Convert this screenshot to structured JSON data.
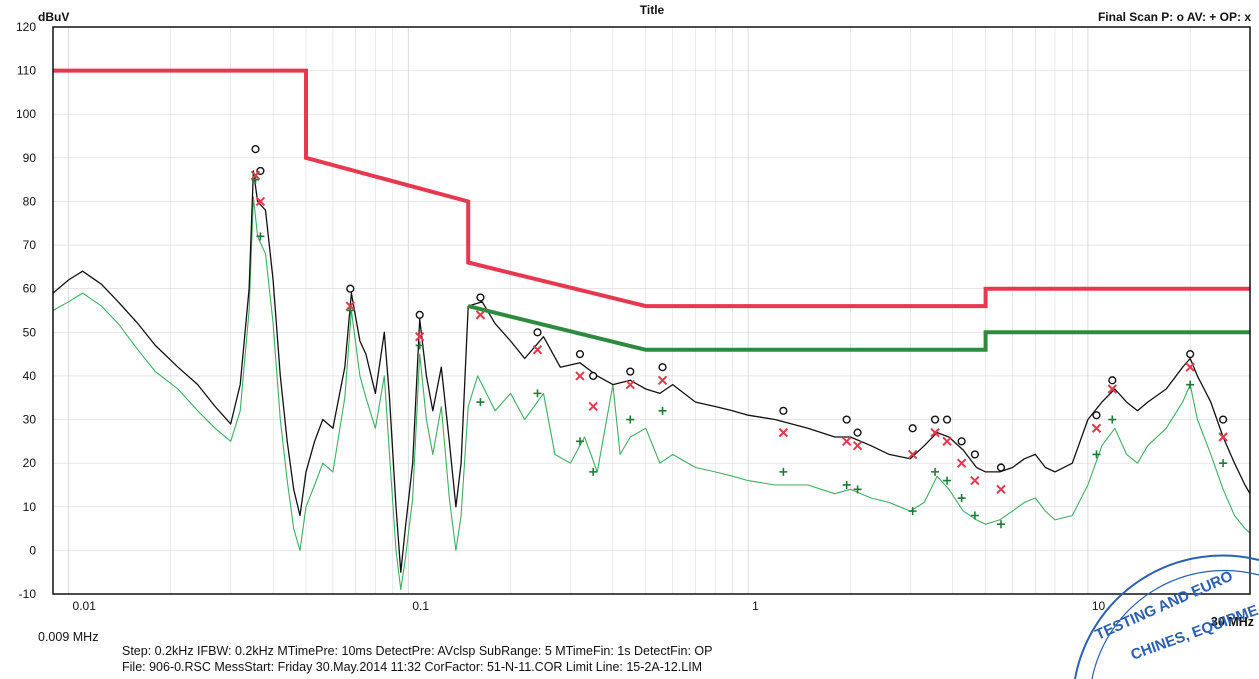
{
  "header": {
    "y_unit": "dBuV",
    "title": "Title",
    "final_scan_legend": "Final Scan P: o  AV: +  OP: x"
  },
  "footer": {
    "start_freq": "0.009 MHz",
    "end_freq": "30 MHz",
    "line1": "Step: 0.2kHz    IFBW: 0.2kHz    MTimePre: 10ms    DetectPre: AVclsp    SubRange:  5    MTimeFin:   1s    DetectFin: OP",
    "line2": "File: 906-0.RSC     MessStart: Friday  30.May.2014   11:32     CorFactor: 51-N-11.COR    Limit Line: 15-2A-12.LIM"
  },
  "stamp": {
    "line1": "TESTING AND EURO",
    "line2": "CHINES, EQUIPME"
  },
  "colors": {
    "limit_red": "#e8384f",
    "limit_green": "#2e8b3e",
    "trace_black": "#111111",
    "trace_green": "#3fae62",
    "marker_red": "#e23a4a",
    "marker_green": "#1f7a34",
    "grid": "#d8d8d8"
  },
  "chart_data": {
    "type": "line",
    "title": "Title",
    "xlabel": "",
    "ylabel": "dBuV",
    "x_scale": "log",
    "xlim_mhz": [
      0.009,
      30
    ],
    "ylim": [
      -10,
      120
    ],
    "x_tick_labels": [
      {
        "mhz": 0.01,
        "label": "0.01"
      },
      {
        "mhz": 0.1,
        "label": "0.1"
      },
      {
        "mhz": 1,
        "label": "1"
      },
      {
        "mhz": 10,
        "label": "10"
      }
    ],
    "y_ticks": [
      -10,
      0,
      10,
      20,
      30,
      40,
      50,
      60,
      70,
      80,
      90,
      100,
      110,
      120
    ],
    "grid": true,
    "limit_lines": [
      {
        "name": "red",
        "color": "#e8384f",
        "points": [
          [
            0.009,
            110
          ],
          [
            0.05,
            110
          ],
          [
            0.05,
            90
          ],
          [
            0.15,
            80
          ],
          [
            0.15,
            66
          ],
          [
            0.5,
            56
          ],
          [
            5,
            56
          ],
          [
            5,
            60
          ],
          [
            30,
            60
          ]
        ]
      },
      {
        "name": "green",
        "color": "#2e8b3e",
        "points": [
          [
            0.15,
            56
          ],
          [
            0.5,
            46
          ],
          [
            5,
            46
          ],
          [
            5,
            50
          ],
          [
            30,
            50
          ]
        ]
      }
    ],
    "series": [
      {
        "detector": "peak",
        "color": "#111111",
        "points": [
          [
            0.009,
            59
          ],
          [
            0.01,
            62
          ],
          [
            0.011,
            64
          ],
          [
            0.0125,
            61
          ],
          [
            0.014,
            57
          ],
          [
            0.016,
            52
          ],
          [
            0.018,
            47
          ],
          [
            0.021,
            42
          ],
          [
            0.024,
            38
          ],
          [
            0.027,
            33
          ],
          [
            0.03,
            29
          ],
          [
            0.032,
            38
          ],
          [
            0.034,
            60
          ],
          [
            0.035,
            87
          ],
          [
            0.036,
            80
          ],
          [
            0.038,
            78
          ],
          [
            0.04,
            62
          ],
          [
            0.042,
            40
          ],
          [
            0.044,
            25
          ],
          [
            0.046,
            14
          ],
          [
            0.048,
            8
          ],
          [
            0.05,
            18
          ],
          [
            0.053,
            25
          ],
          [
            0.056,
            30
          ],
          [
            0.06,
            28
          ],
          [
            0.065,
            42
          ],
          [
            0.068,
            59
          ],
          [
            0.072,
            48
          ],
          [
            0.075,
            45
          ],
          [
            0.08,
            36
          ],
          [
            0.085,
            50
          ],
          [
            0.088,
            35
          ],
          [
            0.092,
            10
          ],
          [
            0.095,
            -5
          ],
          [
            0.098,
            5
          ],
          [
            0.103,
            20
          ],
          [
            0.108,
            53
          ],
          [
            0.113,
            40
          ],
          [
            0.118,
            32
          ],
          [
            0.125,
            42
          ],
          [
            0.132,
            25
          ],
          [
            0.138,
            10
          ],
          [
            0.143,
            20
          ],
          [
            0.15,
            56
          ],
          [
            0.165,
            57
          ],
          [
            0.18,
            52
          ],
          [
            0.2,
            48
          ],
          [
            0.22,
            44
          ],
          [
            0.25,
            49
          ],
          [
            0.28,
            42
          ],
          [
            0.32,
            43
          ],
          [
            0.36,
            40
          ],
          [
            0.4,
            38
          ],
          [
            0.45,
            39
          ],
          [
            0.5,
            37
          ],
          [
            0.55,
            36
          ],
          [
            0.6,
            38
          ],
          [
            0.7,
            34
          ],
          [
            0.8,
            33
          ],
          [
            0.9,
            32
          ],
          [
            1.0,
            31
          ],
          [
            1.2,
            30
          ],
          [
            1.5,
            28
          ],
          [
            1.8,
            26
          ],
          [
            2.0,
            26
          ],
          [
            2.3,
            24
          ],
          [
            2.6,
            22
          ],
          [
            3.0,
            21
          ],
          [
            3.3,
            24
          ],
          [
            3.6,
            27
          ],
          [
            3.9,
            26
          ],
          [
            4.3,
            23
          ],
          [
            4.7,
            19
          ],
          [
            5.0,
            18
          ],
          [
            5.5,
            18
          ],
          [
            6.0,
            19
          ],
          [
            6.5,
            21
          ],
          [
            7.0,
            22
          ],
          [
            7.5,
            19
          ],
          [
            8.0,
            18
          ],
          [
            9.0,
            20
          ],
          [
            10.0,
            30
          ],
          [
            11.0,
            34
          ],
          [
            12.0,
            37
          ],
          [
            13.0,
            34
          ],
          [
            14.0,
            32
          ],
          [
            15.0,
            34
          ],
          [
            17.0,
            37
          ],
          [
            19.0,
            42
          ],
          [
            20.0,
            44
          ],
          [
            21.0,
            40
          ],
          [
            23.0,
            34
          ],
          [
            25.0,
            26
          ],
          [
            27.0,
            20
          ],
          [
            29.0,
            15
          ],
          [
            30.0,
            13
          ]
        ]
      },
      {
        "detector": "average",
        "color": "#3fae62",
        "points": [
          [
            0.009,
            55
          ],
          [
            0.01,
            57
          ],
          [
            0.011,
            59
          ],
          [
            0.0125,
            56
          ],
          [
            0.014,
            52
          ],
          [
            0.016,
            46
          ],
          [
            0.018,
            41
          ],
          [
            0.021,
            37
          ],
          [
            0.024,
            32
          ],
          [
            0.027,
            28
          ],
          [
            0.03,
            25
          ],
          [
            0.032,
            32
          ],
          [
            0.034,
            55
          ],
          [
            0.035,
            81
          ],
          [
            0.036,
            72
          ],
          [
            0.038,
            68
          ],
          [
            0.04,
            52
          ],
          [
            0.042,
            30
          ],
          [
            0.044,
            16
          ],
          [
            0.046,
            5
          ],
          [
            0.048,
            0
          ],
          [
            0.05,
            10
          ],
          [
            0.053,
            15
          ],
          [
            0.056,
            20
          ],
          [
            0.06,
            18
          ],
          [
            0.065,
            35
          ],
          [
            0.068,
            55
          ],
          [
            0.072,
            40
          ],
          [
            0.075,
            35
          ],
          [
            0.08,
            28
          ],
          [
            0.085,
            40
          ],
          [
            0.088,
            22
          ],
          [
            0.092,
            0
          ],
          [
            0.095,
            -9
          ],
          [
            0.098,
            -2
          ],
          [
            0.103,
            12
          ],
          [
            0.108,
            45
          ],
          [
            0.113,
            30
          ],
          [
            0.118,
            22
          ],
          [
            0.125,
            33
          ],
          [
            0.132,
            12
          ],
          [
            0.138,
            0
          ],
          [
            0.143,
            8
          ],
          [
            0.15,
            33
          ],
          [
            0.16,
            40
          ],
          [
            0.18,
            32
          ],
          [
            0.2,
            36
          ],
          [
            0.22,
            30
          ],
          [
            0.25,
            36
          ],
          [
            0.27,
            22
          ],
          [
            0.3,
            20
          ],
          [
            0.33,
            26
          ],
          [
            0.36,
            18
          ],
          [
            0.4,
            38
          ],
          [
            0.42,
            22
          ],
          [
            0.45,
            26
          ],
          [
            0.5,
            28
          ],
          [
            0.55,
            20
          ],
          [
            0.6,
            22
          ],
          [
            0.7,
            19
          ],
          [
            0.8,
            18
          ],
          [
            0.9,
            17
          ],
          [
            1.0,
            16
          ],
          [
            1.2,
            15
          ],
          [
            1.5,
            15
          ],
          [
            1.8,
            13
          ],
          [
            2.0,
            14
          ],
          [
            2.3,
            12
          ],
          [
            2.6,
            11
          ],
          [
            3.0,
            9
          ],
          [
            3.3,
            11
          ],
          [
            3.6,
            17
          ],
          [
            3.9,
            14
          ],
          [
            4.3,
            9
          ],
          [
            4.7,
            7
          ],
          [
            5.0,
            6
          ],
          [
            5.5,
            7
          ],
          [
            6.0,
            9
          ],
          [
            6.5,
            11
          ],
          [
            7.0,
            12
          ],
          [
            7.5,
            9
          ],
          [
            8.0,
            7
          ],
          [
            9.0,
            8
          ],
          [
            10.0,
            15
          ],
          [
            11.0,
            24
          ],
          [
            12.0,
            28
          ],
          [
            13.0,
            22
          ],
          [
            14.0,
            20
          ],
          [
            15.0,
            24
          ],
          [
            17.0,
            28
          ],
          [
            19.0,
            34
          ],
          [
            20.0,
            38
          ],
          [
            21.0,
            30
          ],
          [
            23.0,
            22
          ],
          [
            25.0,
            14
          ],
          [
            27.0,
            8
          ],
          [
            29.0,
            5
          ],
          [
            30.0,
            4
          ]
        ]
      }
    ],
    "final_scan": {
      "peak_o": [
        [
          0.0355,
          92
        ],
        [
          0.0367,
          87
        ],
        [
          0.0675,
          60
        ],
        [
          0.108,
          54
        ],
        [
          0.163,
          58
        ],
        [
          0.24,
          50
        ],
        [
          0.32,
          45
        ],
        [
          0.35,
          40
        ],
        [
          0.45,
          41
        ],
        [
          0.56,
          42
        ],
        [
          1.27,
          32
        ],
        [
          1.95,
          30
        ],
        [
          2.1,
          27
        ],
        [
          3.05,
          28
        ],
        [
          3.55,
          30
        ],
        [
          3.85,
          30
        ],
        [
          4.25,
          25
        ],
        [
          4.65,
          22
        ],
        [
          5.55,
          19
        ],
        [
          10.6,
          31
        ],
        [
          11.8,
          39
        ],
        [
          20.0,
          45
        ],
        [
          25.0,
          30
        ]
      ],
      "average_plus": [
        [
          0.0355,
          85
        ],
        [
          0.0367,
          72
        ],
        [
          0.0675,
          55
        ],
        [
          0.108,
          47
        ],
        [
          0.163,
          34
        ],
        [
          0.24,
          36
        ],
        [
          0.32,
          25
        ],
        [
          0.35,
          18
        ],
        [
          0.45,
          30
        ],
        [
          0.56,
          32
        ],
        [
          1.27,
          18
        ],
        [
          1.95,
          15
        ],
        [
          2.1,
          14
        ],
        [
          3.05,
          9
        ],
        [
          3.55,
          18
        ],
        [
          3.85,
          16
        ],
        [
          4.25,
          12
        ],
        [
          4.65,
          8
        ],
        [
          5.55,
          6
        ],
        [
          10.6,
          22
        ],
        [
          11.8,
          30
        ],
        [
          20.0,
          38
        ],
        [
          25.0,
          20
        ]
      ],
      "qp_x": [
        [
          0.0355,
          86
        ],
        [
          0.0367,
          80
        ],
        [
          0.0675,
          56
        ],
        [
          0.108,
          49
        ],
        [
          0.163,
          54
        ],
        [
          0.24,
          46
        ],
        [
          0.32,
          40
        ],
        [
          0.35,
          33
        ],
        [
          0.45,
          38
        ],
        [
          0.56,
          39
        ],
        [
          1.27,
          27
        ],
        [
          1.95,
          25
        ],
        [
          2.1,
          24
        ],
        [
          3.05,
          22
        ],
        [
          3.55,
          27
        ],
        [
          3.85,
          25
        ],
        [
          4.25,
          20
        ],
        [
          4.65,
          16
        ],
        [
          5.55,
          14
        ],
        [
          10.6,
          28
        ],
        [
          11.8,
          37
        ],
        [
          20.0,
          42
        ],
        [
          25.0,
          26
        ]
      ]
    }
  }
}
